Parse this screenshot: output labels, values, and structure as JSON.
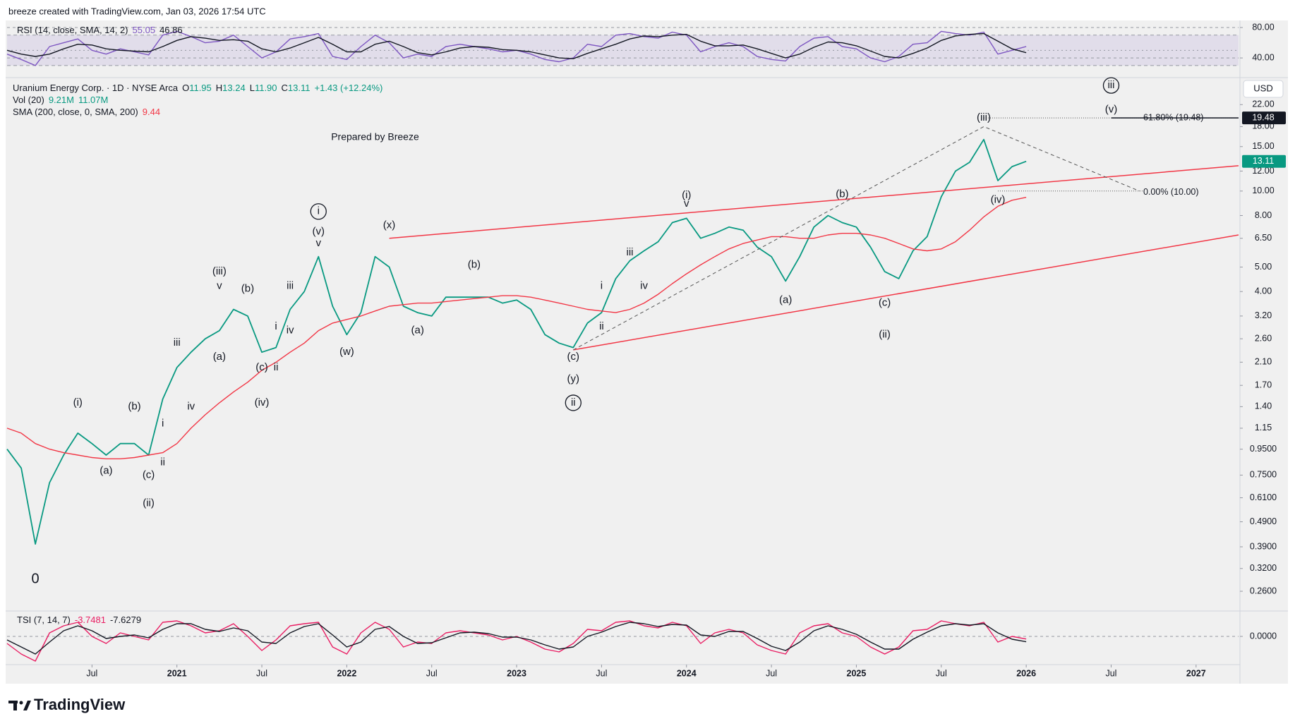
{
  "header": {
    "text": "breeze created with TradingView.com, Jan 03, 2026 17:54 UTC"
  },
  "footer": {
    "logo": "TradingView"
  },
  "chart_data": [
    {
      "type": "line",
      "legend": {
        "name": "RSI (14, close, SMA, 14, 2)",
        "values": [
          55.05,
          46.86
        ]
      },
      "ylim": [
        16,
        86.5
      ],
      "yticks": [
        {
          "value": 80,
          "label": "80.00"
        },
        {
          "value": 40,
          "label": "40.00"
        }
      ],
      "band": [
        30,
        70
      ],
      "midline": 50,
      "band_color": "#7e57c2",
      "series": [
        {
          "color": "#7e57c2",
          "values": [
            45,
            38,
            30,
            55,
            60,
            65,
            50,
            45,
            52,
            48,
            44,
            70,
            75,
            68,
            60,
            62,
            70,
            55,
            40,
            48,
            65,
            68,
            72,
            42,
            38,
            55,
            70,
            60,
            40,
            45,
            42,
            55,
            58,
            55,
            52,
            48,
            50,
            45,
            38,
            35,
            40,
            58,
            55,
            70,
            72,
            68,
            66,
            74,
            70,
            48,
            55,
            60,
            55,
            42,
            38,
            36,
            55,
            66,
            68,
            55,
            52,
            40,
            35,
            42,
            58,
            60,
            75,
            72,
            70,
            74,
            45,
            50,
            55.05
          ]
        },
        {
          "color": "#131722",
          "values": [
            50,
            45,
            42,
            45,
            52,
            58,
            57,
            52,
            50,
            49,
            48,
            55,
            63,
            68,
            66,
            63,
            64,
            62,
            52,
            48,
            53,
            60,
            67,
            58,
            48,
            48,
            58,
            62,
            55,
            47,
            44,
            48,
            53,
            55,
            54,
            51,
            50,
            48,
            44,
            40,
            39,
            46,
            52,
            58,
            65,
            69,
            68,
            70,
            71,
            62,
            56,
            56,
            57,
            52,
            46,
            40,
            45,
            54,
            61,
            60,
            56,
            49,
            42,
            40,
            46,
            53,
            63,
            69,
            71,
            72,
            62,
            52,
            46.86
          ]
        }
      ]
    },
    {
      "type": "line",
      "log_scale": true,
      "legend_rows": [
        {
          "name": "Uranium Energy Corp. · 1D · NYSE Arca",
          "items": [
            {
              "label": "O",
              "value": "11.95"
            },
            {
              "label": "H",
              "value": "13.24"
            },
            {
              "label": "L",
              "value": "11.90"
            },
            {
              "label": "C",
              "value": "13.11"
            },
            {
              "value": "+1.43 (+12.24%)"
            }
          ]
        },
        {
          "name": "Vol (20)",
          "items": [
            {
              "value": "9.21M"
            },
            {
              "value": "11.07M"
            }
          ]
        },
        {
          "name": "SMA (200, close, 0, SMA, 200)",
          "items": [
            {
              "value": "9.44"
            }
          ]
        }
      ],
      "currency": "USD",
      "x": [
        "2020-01",
        "2020-02",
        "2020-03",
        "2020-04",
        "2020-05",
        "2020-06",
        "2020-07",
        "2020-08",
        "2020-09",
        "2020-10",
        "2020-11",
        "2020-12",
        "2021-01",
        "2021-02",
        "2021-03",
        "2021-04",
        "2021-05",
        "2021-06",
        "2021-07",
        "2021-08",
        "2021-09",
        "2021-10",
        "2021-11",
        "2021-12",
        "2022-01",
        "2022-02",
        "2022-03",
        "2022-04",
        "2022-05",
        "2022-06",
        "2022-07",
        "2022-08",
        "2022-09",
        "2022-10",
        "2022-11",
        "2022-12",
        "2023-01",
        "2023-02",
        "2023-03",
        "2023-04",
        "2023-05",
        "2023-06",
        "2023-07",
        "2023-08",
        "2023-09",
        "2023-10",
        "2023-11",
        "2023-12",
        "2024-01",
        "2024-02",
        "2024-03",
        "2024-04",
        "2024-05",
        "2024-06",
        "2024-07",
        "2024-08",
        "2024-09",
        "2024-10",
        "2024-11",
        "2024-12",
        "2025-01",
        "2025-02",
        "2025-03",
        "2025-04",
        "2025-05",
        "2025-06",
        "2025-07",
        "2025-08",
        "2025-09",
        "2025-10",
        "2025-11",
        "2025-12",
        "2026-01"
      ],
      "xlim": [
        "2020-01",
        "2027-04"
      ],
      "xticks": [
        {
          "value": "2020-07",
          "label": "Jul"
        },
        {
          "value": "2021-01",
          "label": "2021"
        },
        {
          "value": "2021-07",
          "label": "Jul"
        },
        {
          "value": "2022-01",
          "label": "2022"
        },
        {
          "value": "2022-07",
          "label": "Jul"
        },
        {
          "value": "2023-01",
          "label": "2023"
        },
        {
          "value": "2023-07",
          "label": "Jul"
        },
        {
          "value": "2024-01",
          "label": "2024"
        },
        {
          "value": "2024-07",
          "label": "Jul"
        },
        {
          "value": "2025-01",
          "label": "2025"
        },
        {
          "value": "2025-07",
          "label": "Jul"
        },
        {
          "value": "2026-01",
          "label": "2026"
        },
        {
          "value": "2026-07",
          "label": "Jul"
        },
        {
          "value": "2027-01",
          "label": "2027"
        }
      ],
      "ylim": [
        0.22,
        27.6
      ],
      "yticks": [
        {
          "value": 0.26,
          "label": "0.2600"
        },
        {
          "value": 0.32,
          "label": "0.3200"
        },
        {
          "value": 0.39,
          "label": "0.3900"
        },
        {
          "value": 0.49,
          "label": "0.4900"
        },
        {
          "value": 0.61,
          "label": "0.6100"
        },
        {
          "value": 0.75,
          "label": "0.7500"
        },
        {
          "value": 0.95,
          "label": "0.9500"
        },
        1.15,
        {
          "value": 1.4,
          "label": "1.40"
        },
        {
          "value": 1.7,
          "label": "1.70"
        },
        {
          "value": 2.1,
          "label": "2.10"
        },
        {
          "value": 2.6,
          "label": "2.60"
        },
        {
          "value": 3.2,
          "label": "3.20"
        },
        {
          "value": 4,
          "label": "4.00"
        },
        {
          "value": 5,
          "label": "5.00"
        },
        {
          "value": 6.5,
          "label": "6.50"
        },
        {
          "value": 8,
          "label": "8.00"
        },
        {
          "value": 10,
          "label": "10.00"
        },
        {
          "value": 12,
          "label": "12.00"
        },
        {
          "value": 15,
          "label": "15.00"
        },
        {
          "value": 18,
          "label": "18.00"
        },
        {
          "value": 22,
          "label": "22.00"
        }
      ],
      "series": [
        {
          "color": "#089981",
          "values": [
            0.95,
            0.8,
            0.4,
            0.7,
            0.9,
            1.1,
            1.0,
            0.9,
            1.0,
            1.0,
            0.9,
            1.5,
            2.0,
            2.3,
            2.6,
            2.8,
            3.4,
            3.2,
            2.3,
            2.4,
            3.4,
            4.0,
            5.5,
            3.5,
            2.7,
            3.3,
            5.5,
            5.0,
            3.5,
            3.3,
            3.2,
            3.8,
            3.8,
            3.8,
            3.8,
            3.6,
            3.7,
            3.4,
            2.7,
            2.5,
            2.4,
            3.0,
            3.3,
            4.5,
            5.3,
            5.8,
            6.3,
            7.5,
            7.8,
            6.5,
            6.8,
            7.2,
            7.0,
            6.0,
            5.5,
            4.4,
            5.5,
            7.2,
            8.0,
            7.5,
            7.2,
            6.0,
            4.8,
            4.5,
            5.8,
            6.6,
            9.5,
            12.0,
            13.0,
            16.0,
            11.0,
            12.5,
            13.11
          ]
        },
        {
          "color": "#f23645",
          "values": [
            1.15,
            1.1,
            1.0,
            0.95,
            0.92,
            0.9,
            0.88,
            0.87,
            0.87,
            0.88,
            0.9,
            0.92,
            1.0,
            1.15,
            1.3,
            1.45,
            1.6,
            1.75,
            1.95,
            2.1,
            2.3,
            2.5,
            2.8,
            3.0,
            3.1,
            3.2,
            3.35,
            3.5,
            3.55,
            3.6,
            3.6,
            3.65,
            3.7,
            3.75,
            3.8,
            3.85,
            3.85,
            3.8,
            3.7,
            3.6,
            3.5,
            3.4,
            3.35,
            3.3,
            3.4,
            3.6,
            3.9,
            4.3,
            4.7,
            5.1,
            5.5,
            5.9,
            6.2,
            6.4,
            6.6,
            6.6,
            6.5,
            6.5,
            6.7,
            6.8,
            6.8,
            6.7,
            6.5,
            6.2,
            5.9,
            5.8,
            5.9,
            6.3,
            7.0,
            7.9,
            8.7,
            9.2,
            9.44
          ]
        }
      ],
      "price_tags": [
        {
          "value": 19.48,
          "color": "#131722"
        },
        {
          "value": 13.11,
          "color": "#089981"
        }
      ],
      "fib_levels": [
        {
          "value": 19.48,
          "label": "61.80% (19.48)",
          "from": "2025-10"
        },
        {
          "value": 10,
          "label": "0.00% (10.00)",
          "from": "2025-11"
        }
      ],
      "trendlines": [
        {
          "color": "#f23645",
          "points": [
            [
              "2022-04",
              6.5
            ],
            [
              "2027-04",
              12.6
            ]
          ]
        },
        {
          "color": "#f23645",
          "points": [
            [
              "2023-05",
              2.35
            ],
            [
              "2027-04",
              6.7
            ]
          ]
        },
        {
          "color": "#555555",
          "dashed": true,
          "points": [
            [
              "2023-05",
              2.35
            ],
            [
              "2025-10",
              18
            ],
            [
              "2026-09",
              10
            ]
          ]
        }
      ],
      "note": {
        "text": "Prepared by Breeze",
        "x": "2022-03",
        "y": 16.3
      },
      "annotations": [
        {
          "text": "0",
          "x": "2020-03",
          "y": 0.29,
          "big": true
        },
        {
          "text": "(i)",
          "x": "2020-06",
          "y": 1.45
        },
        {
          "text": "(a)",
          "x": "2020-08",
          "y": 0.78
        },
        {
          "text": "(b)",
          "x": "2020-10",
          "y": 1.4
        },
        {
          "text": "(c)",
          "x": "2020-11",
          "y": 0.75
        },
        {
          "text": "(ii)",
          "x": "2020-11",
          "y": 0.58
        },
        {
          "text": "i",
          "x": "2020-12",
          "y": 1.2
        },
        {
          "text": "ii",
          "x": "2020-12",
          "y": 0.84
        },
        {
          "text": "iii",
          "x": "2021-01",
          "y": 2.5
        },
        {
          "text": "iv",
          "x": "2021-02",
          "y": 1.4
        },
        {
          "text": "(iii)",
          "x": "2021-04",
          "y": 4.8
        },
        {
          "text": "v",
          "x": "2021-04",
          "y": 4.2
        },
        {
          "text": "(a)",
          "x": "2021-04",
          "y": 2.2
        },
        {
          "text": "(b)",
          "x": "2021-06",
          "y": 4.1
        },
        {
          "text": "(c)",
          "x": "2021-07",
          "y": 2.0
        },
        {
          "text": "(iv)",
          "x": "2021-07",
          "y": 1.45
        },
        {
          "text": "i",
          "x": "2021-08",
          "y": 2.9
        },
        {
          "text": "ii",
          "x": "2021-08",
          "y": 2.0
        },
        {
          "text": "iii",
          "x": "2021-09",
          "y": 4.2
        },
        {
          "text": "iv",
          "x": "2021-09",
          "y": 2.8
        },
        {
          "text": "i",
          "x": "2021-11",
          "y": 8.3,
          "circled": true
        },
        {
          "text": "(v)",
          "x": "2021-11",
          "y": 6.9
        },
        {
          "text": "v",
          "x": "2021-11",
          "y": 6.2
        },
        {
          "text": "(w)",
          "x": "2022-01",
          "y": 2.3
        },
        {
          "text": "(x)",
          "x": "2022-04",
          "y": 7.3
        },
        {
          "text": "(a)",
          "x": "2022-06",
          "y": 2.8
        },
        {
          "text": "(b)",
          "x": "2022-10",
          "y": 5.1
        },
        {
          "text": "(c)",
          "x": "2023-05",
          "y": 2.2
        },
        {
          "text": "(y)",
          "x": "2023-05",
          "y": 1.8
        },
        {
          "text": "ii",
          "x": "2023-05",
          "y": 1.45,
          "circled": true
        },
        {
          "text": "i",
          "x": "2023-07",
          "y": 4.2
        },
        {
          "text": "ii",
          "x": "2023-07",
          "y": 2.9
        },
        {
          "text": "iii",
          "x": "2023-09",
          "y": 5.7
        },
        {
          "text": "iv",
          "x": "2023-10",
          "y": 4.2
        },
        {
          "text": "(i)",
          "x": "2024-01",
          "y": 9.6
        },
        {
          "text": "v",
          "x": "2024-01",
          "y": 8.9
        },
        {
          "text": "(a)",
          "x": "2024-08",
          "y": 3.7
        },
        {
          "text": "(b)",
          "x": "2024-12",
          "y": 9.7
        },
        {
          "text": "(c)",
          "x": "2025-03",
          "y": 3.6
        },
        {
          "text": "(ii)",
          "x": "2025-03",
          "y": 2.7
        },
        {
          "text": "(iii)",
          "x": "2025-10",
          "y": 19.5
        },
        {
          "text": "(iv)",
          "x": "2025-11",
          "y": 9.2
        },
        {
          "text": "iii",
          "x": "2026-07",
          "y": 26.2,
          "circled": true
        },
        {
          "text": "(v)",
          "x": "2026-07",
          "y": 21
        }
      ]
    },
    {
      "type": "line",
      "legend": {
        "name": "TSI (7, 14, 7)",
        "values": [
          -3.7481,
          -7.6279
        ]
      },
      "ylim": [
        -38,
        34
      ],
      "yticks": [
        {
          "value": 0,
          "label": "0.0000"
        }
      ],
      "series": [
        {
          "color": "#e91e63",
          "values": [
            -10,
            -25,
            -35,
            5,
            15,
            20,
            0,
            -10,
            5,
            0,
            -5,
            20,
            22,
            15,
            5,
            8,
            18,
            0,
            -20,
            -5,
            15,
            18,
            20,
            -15,
            -25,
            5,
            20,
            10,
            -15,
            -8,
            -10,
            5,
            8,
            5,
            2,
            -5,
            0,
            -8,
            -18,
            -22,
            -10,
            10,
            8,
            20,
            22,
            15,
            12,
            20,
            15,
            -10,
            5,
            10,
            5,
            -12,
            -20,
            -25,
            5,
            15,
            18,
            5,
            0,
            -15,
            -25,
            -15,
            8,
            10,
            22,
            18,
            15,
            20,
            -8,
            0,
            -3.7481
          ]
        },
        {
          "color": "#131722",
          "values": [
            -5,
            -15,
            -25,
            -8,
            8,
            15,
            8,
            -3,
            0,
            2,
            -2,
            10,
            18,
            18,
            10,
            7,
            12,
            8,
            -8,
            -10,
            5,
            14,
            18,
            2,
            -15,
            -8,
            10,
            14,
            0,
            -10,
            -9,
            -2,
            5,
            6,
            4,
            -1,
            -1,
            -5,
            -12,
            -18,
            -15,
            0,
            6,
            14,
            20,
            18,
            14,
            17,
            16,
            2,
            0,
            7,
            7,
            -3,
            -14,
            -20,
            -8,
            8,
            15,
            10,
            3,
            -8,
            -18,
            -18,
            -4,
            6,
            15,
            18,
            16,
            18,
            5,
            -4,
            -7.6279
          ]
        }
      ]
    }
  ]
}
